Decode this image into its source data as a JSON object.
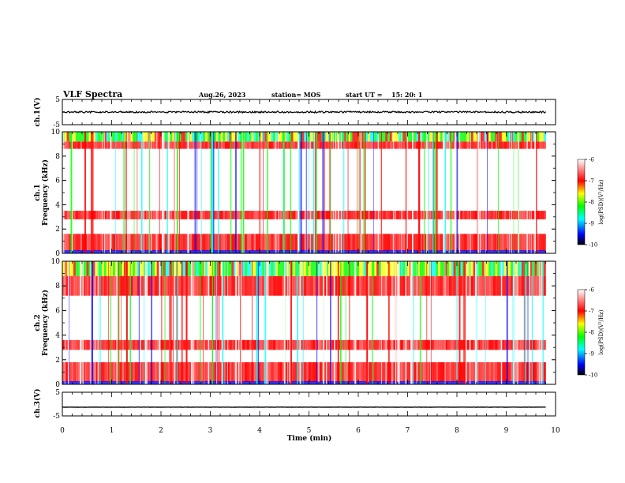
{
  "header": {
    "title": "VLF Spectra",
    "date": "Aug.26, 2023",
    "station": "station= MOS",
    "start_label": "start  UT =",
    "start_time": "15: 20: 1"
  },
  "chart_data": [
    {
      "type": "line",
      "panel": "ch1-waveform",
      "ylabel": "ch.1(V)",
      "ylim": [
        -5,
        5
      ],
      "y_ticks": [
        "5",
        "-5"
      ],
      "signal_level": 0,
      "xlim": [
        0,
        10
      ]
    },
    {
      "type": "heatmap",
      "panel": "ch1-spectrogram",
      "ylabel": "ch.1",
      "ylabel2": "Frequency  (kHz)",
      "ylim": [
        0,
        10
      ],
      "y_ticks": [
        "0",
        "2",
        "4",
        "6",
        "8",
        "10"
      ],
      "x_range": [
        0,
        9.8
      ],
      "bands_khz": [
        [
          0.2,
          1.6
        ],
        [
          2.8,
          3.5
        ],
        [
          8.6,
          9.2
        ],
        [
          9.2,
          10
        ]
      ],
      "colorbar": {
        "range": [
          -10,
          -6
        ],
        "ticks": [
          "-6",
          "-7",
          "-8",
          "-9",
          "-10"
        ],
        "label": "log(PSD)(V²/Hz)"
      }
    },
    {
      "type": "heatmap",
      "panel": "ch2-spectrogram",
      "ylabel": "ch.2",
      "ylabel2": "Frequency  (kHz)",
      "ylim": [
        0,
        10
      ],
      "y_ticks": [
        "0",
        "2",
        "4",
        "6",
        "8",
        "10"
      ],
      "x_range": [
        0,
        9.8
      ],
      "bands_khz": [
        [
          0.2,
          1.8
        ],
        [
          2.8,
          3.6
        ],
        [
          7.2,
          8.8
        ],
        [
          8.8,
          10
        ]
      ],
      "colorbar": {
        "range": [
          -10,
          -6
        ],
        "ticks": [
          "-6",
          "-7",
          "-8",
          "-9",
          "-10"
        ],
        "label": "log(PSD)(V²/Hz)"
      }
    },
    {
      "type": "line",
      "panel": "ch3-waveform",
      "ylabel": "ch.3(V)",
      "ylim": [
        -5,
        5
      ],
      "y_ticks": [
        "5",
        "-5"
      ],
      "signal_level": -1.3,
      "xlim": [
        0,
        10
      ]
    }
  ],
  "x_axis": {
    "label": "Time  (min)",
    "ticks": [
      "0",
      "1",
      "2",
      "3",
      "4",
      "5",
      "6",
      "7",
      "8",
      "9",
      "10"
    ]
  },
  "colormap": [
    "#000000",
    "#0000ff",
    "#00ffff",
    "#00ff00",
    "#ffff00",
    "#ff0000",
    "#ffffff"
  ]
}
